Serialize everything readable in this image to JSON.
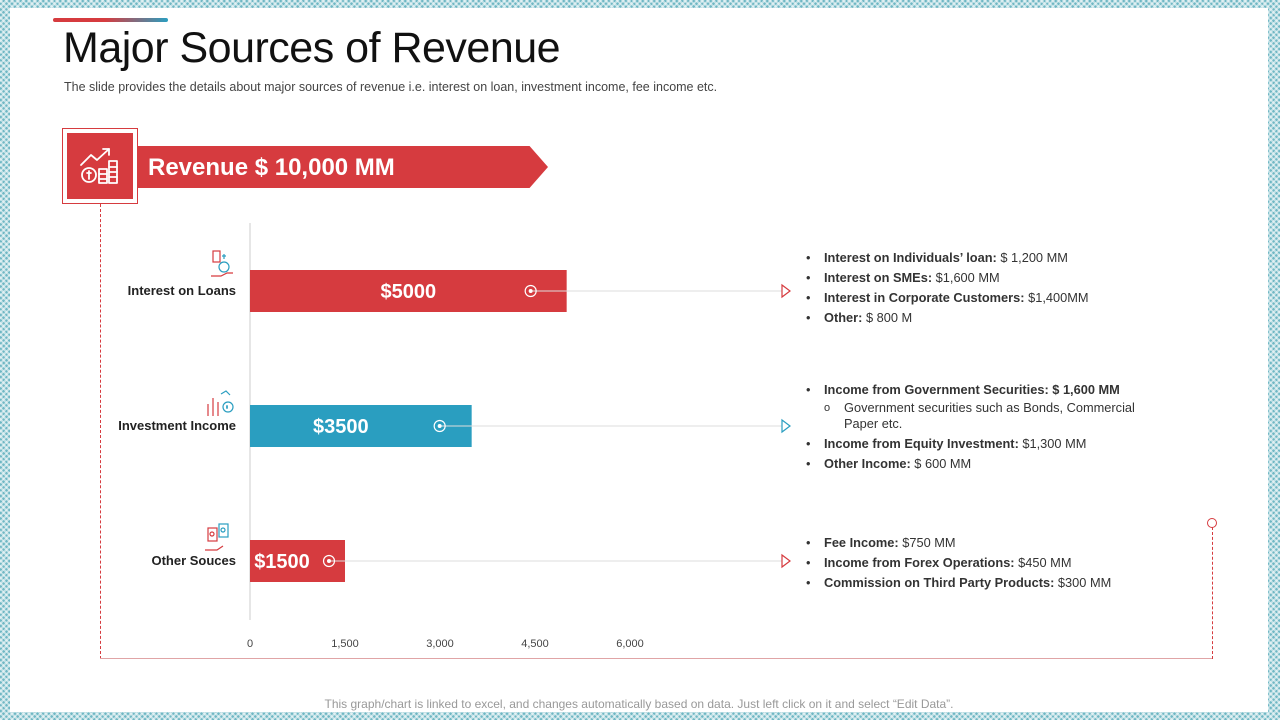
{
  "header": {
    "title": "Major Sources of Revenue",
    "subtitle": "The slide provides  the details about major sources of revenue  i.e. interest on loan, investment  income, fee income etc."
  },
  "banner": {
    "label": "Revenue $ 10,000 MM",
    "icon": "revenue-growth-icon"
  },
  "colors": {
    "red": "#d63b3f",
    "teal": "#2a9ec0"
  },
  "chart_data": {
    "type": "bar",
    "orientation": "horizontal",
    "categories": [
      "Interest on Loans",
      "Investment Income",
      "Other Souces"
    ],
    "values": [
      5000,
      3500,
      1500
    ],
    "data_labels": [
      "$5000",
      "$3500",
      "$1500"
    ],
    "bar_colors": [
      "#d63b3f",
      "#2a9ec0",
      "#d63b3f"
    ],
    "x_ticks": [
      "0",
      "1,500",
      "3,000",
      "4,500",
      "6,000"
    ],
    "tick_values": [
      0,
      1500,
      3000,
      4500,
      6000
    ],
    "xlim": [
      0,
      7500
    ],
    "grid": false,
    "legend": "none"
  },
  "category_icons": [
    "loan-hand-icon",
    "investment-chart-icon",
    "fee-cash-icon"
  ],
  "details": [
    {
      "items": [
        {
          "label": "Interest on Individuals’ loan:",
          "value": " $ 1,200 MM"
        },
        {
          "label": "Interest on SMEs:",
          "value": " $1,600 MM"
        },
        {
          "label": "Interest in Corporate Customers:",
          "value": "  $1,400MM"
        },
        {
          "label": "Other:",
          "value": " $ 800 M"
        }
      ]
    },
    {
      "items": [
        {
          "label": "Income from Government Securities: $ 1,600 MM",
          "value": ""
        },
        {
          "label": "",
          "value": "Government  securities such as Bonds, Commercial Paper etc.",
          "sub": true
        },
        {
          "label": "Income from Equity  Investment:",
          "value": " $1,300 MM"
        },
        {
          "label": "Other Income:",
          "value": " $ 600 MM"
        }
      ]
    },
    {
      "items": [
        {
          "label": "Fee Income:",
          "value": " $750 MM"
        },
        {
          "label": "Income from Forex Operations:",
          "value": "  $450 MM"
        },
        {
          "label": "Commission  on Third Party Products:",
          "value": "  $300 MM"
        }
      ]
    }
  ],
  "footer": {
    "note": "This graph/chart is linked to excel, and changes automatically based on data. Just left click on it and select “Edit Data”."
  }
}
